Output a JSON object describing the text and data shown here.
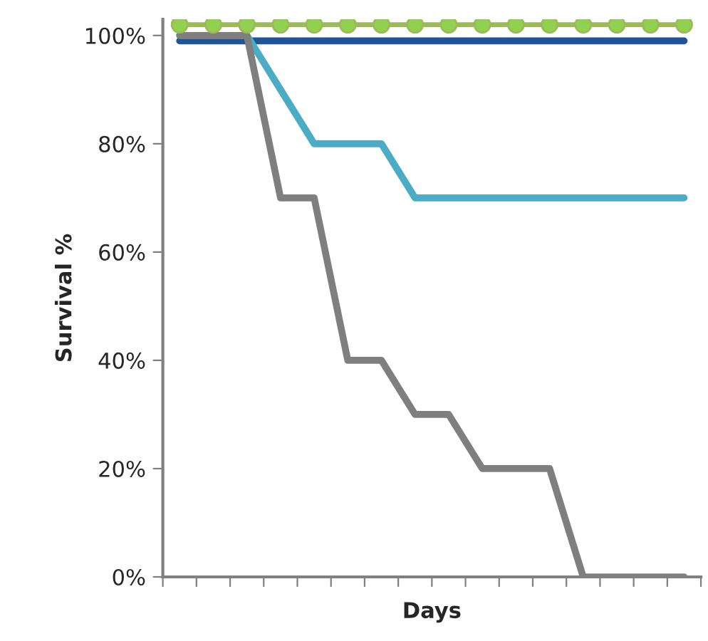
{
  "chart_data": {
    "type": "line",
    "xlabel": "Days",
    "ylabel": "Survival %",
    "categories": [
      null,
      null,
      null,
      null,
      null,
      null,
      null,
      null,
      null,
      null,
      null,
      null,
      null,
      null,
      null,
      null
    ],
    "series": [
      {
        "color": "#1f5597",
        "values": [
          99,
          99,
          99,
          99,
          99,
          99,
          99,
          99,
          99,
          99,
          99,
          99,
          99,
          99,
          99,
          99
        ],
        "marker": "none"
      },
      {
        "color": "#4bacc6",
        "values": [
          100,
          100,
          100,
          90,
          80,
          80,
          80,
          70,
          70,
          70,
          70,
          70,
          70,
          70,
          70,
          70
        ],
        "marker": "none"
      },
      {
        "color": "#7f7f7f",
        "values": [
          100,
          100,
          100,
          70,
          70,
          40,
          40,
          30,
          30,
          20,
          20,
          20,
          0,
          0,
          0,
          0
        ],
        "marker": "none"
      },
      {
        "color": "#9bbb59",
        "values": [
          102,
          102,
          102,
          102,
          102,
          102,
          102,
          102,
          102,
          102,
          102,
          102,
          102,
          102,
          102,
          102
        ],
        "marker": "circle"
      }
    ],
    "ylim": [
      0,
      103
    ],
    "yticks": [
      {
        "value": 0,
        "label": "0%"
      },
      {
        "value": 20,
        "label": "20%"
      },
      {
        "value": 40,
        "label": "40%"
      },
      {
        "value": 60,
        "label": "60%"
      },
      {
        "value": 80,
        "label": "80%"
      },
      {
        "value": 100,
        "label": "100%"
      }
    ],
    "grid": false,
    "legend": false
  }
}
